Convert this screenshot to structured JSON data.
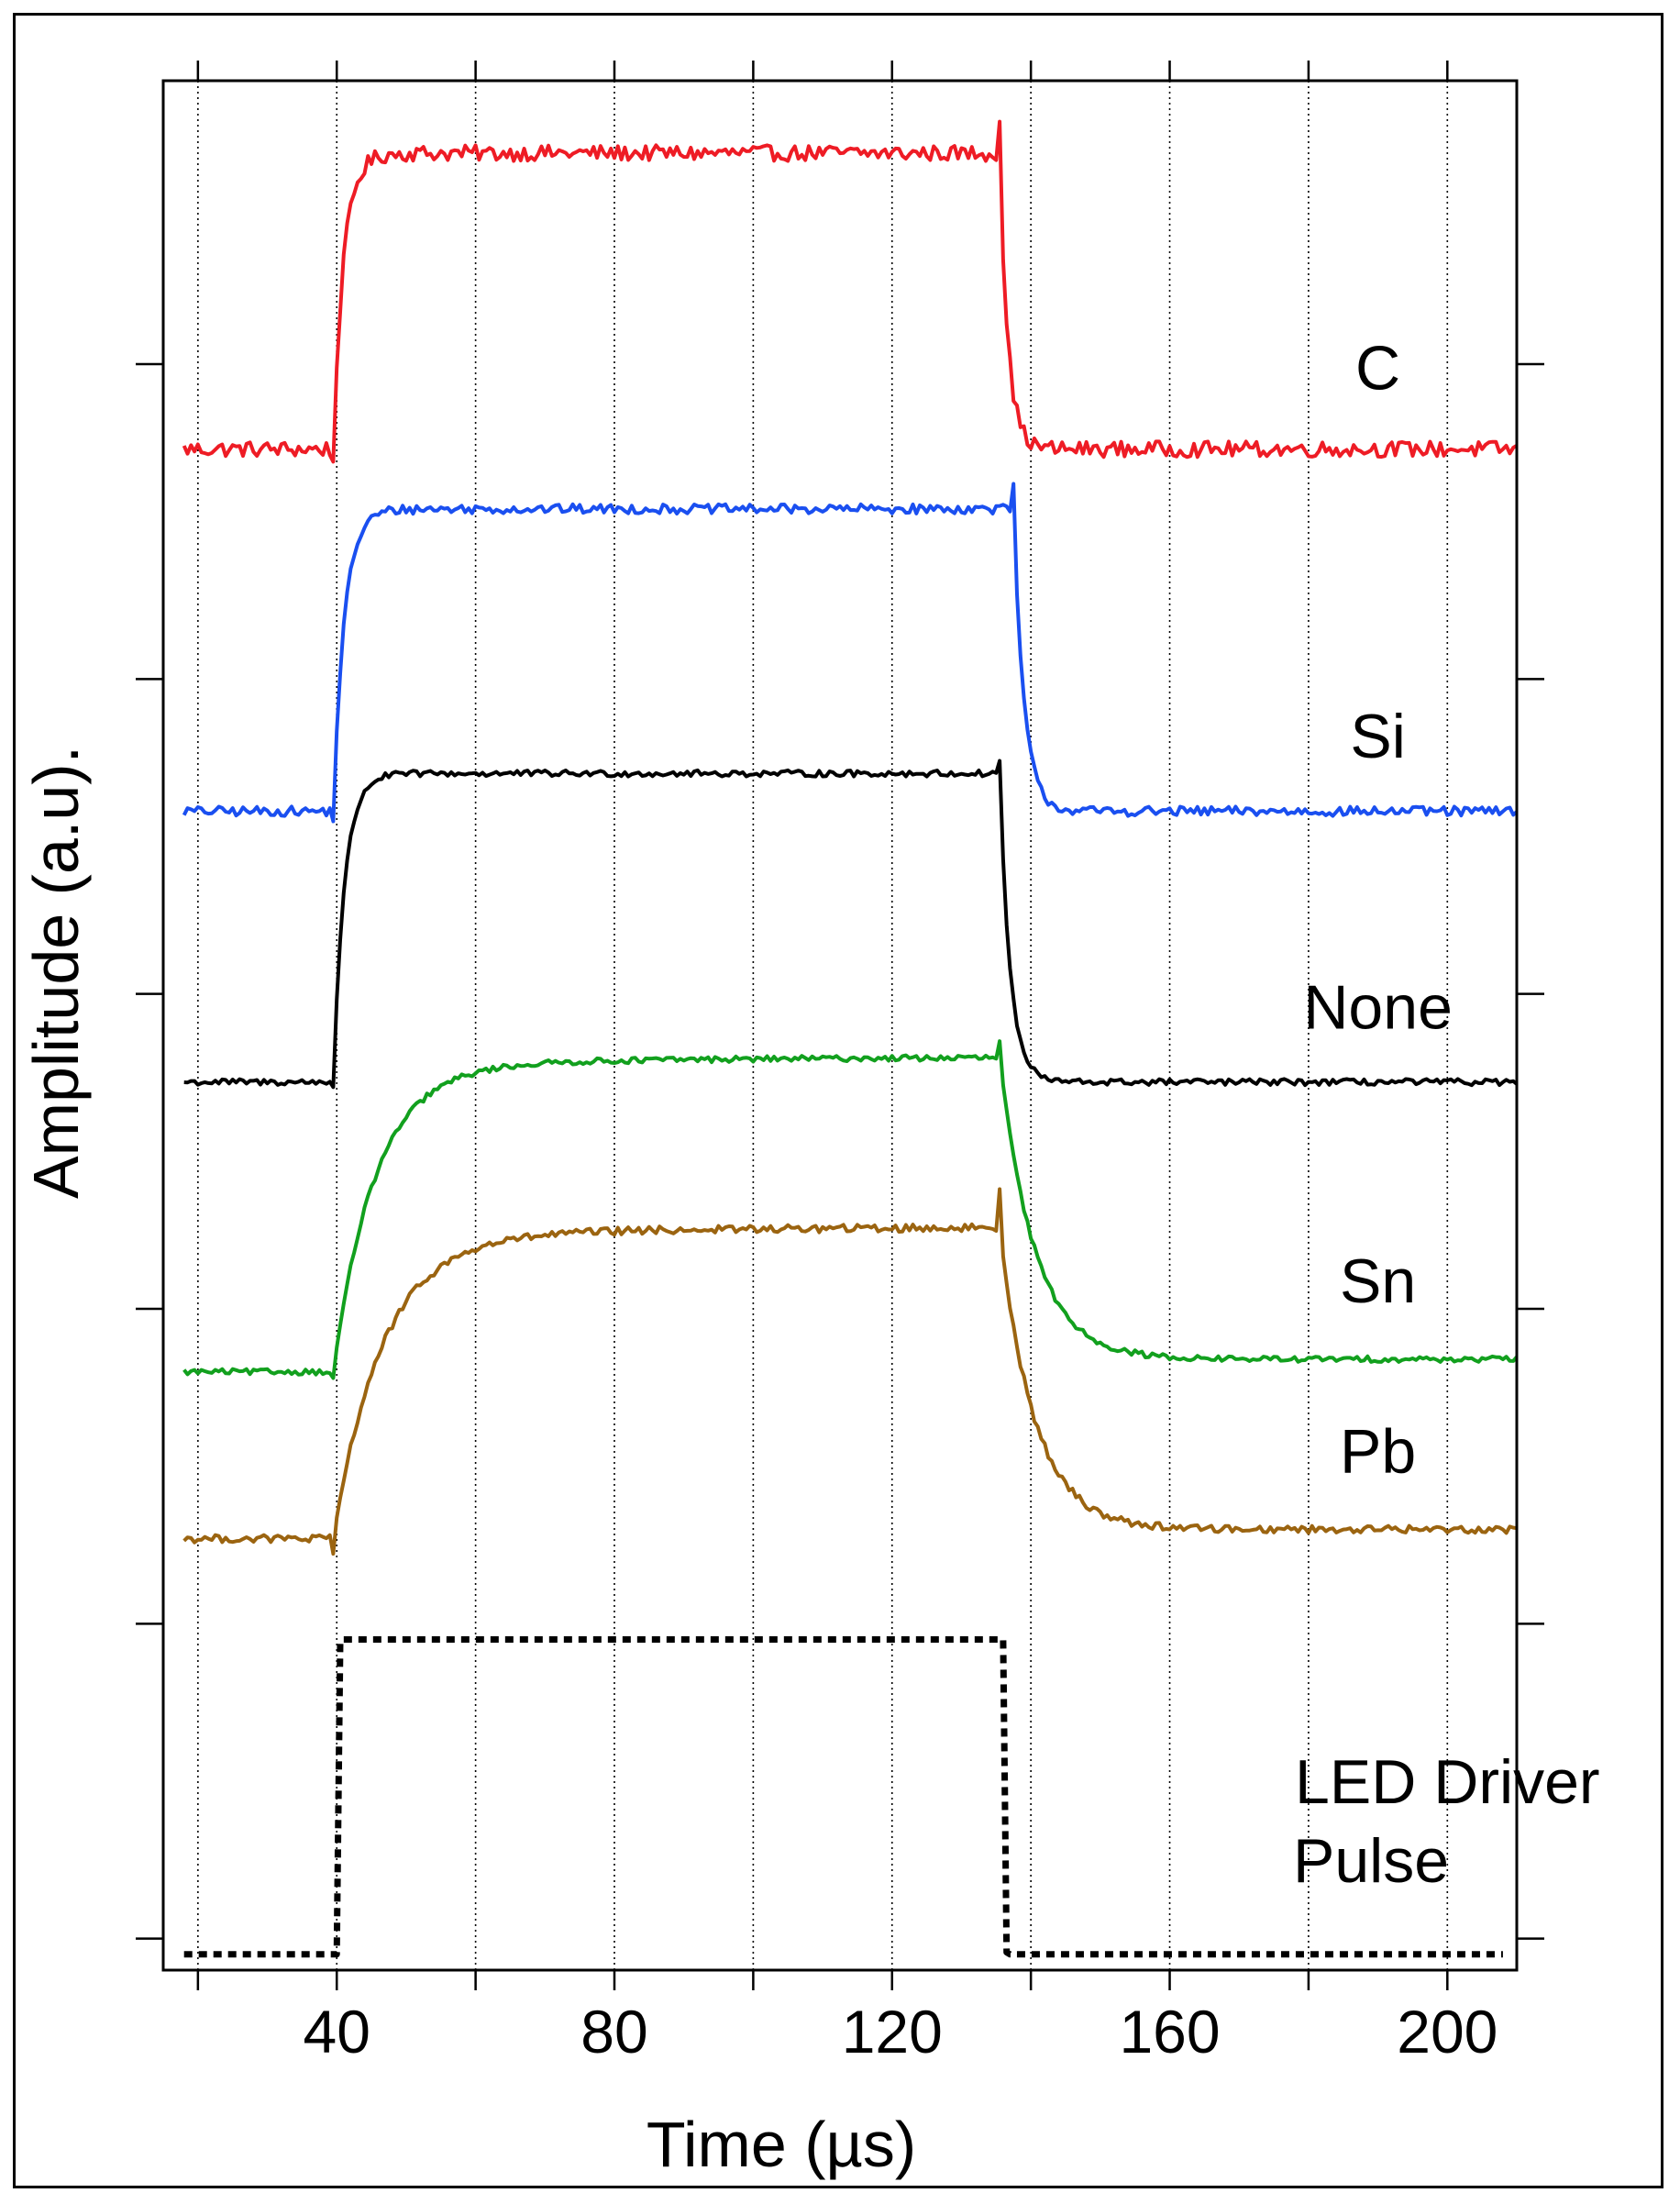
{
  "chart_data": {
    "type": "line",
    "title": "",
    "xlabel": "Time (µs)",
    "ylabel": "Amplitude (a.u).",
    "xlim": [
      15,
      210
    ],
    "ylim": [
      -0.1,
      5.9
    ],
    "x_major_ticks": [
      40,
      80,
      120,
      160,
      200
    ],
    "x_major_tick_labels": [
      "40",
      "80",
      "120",
      "160",
      "200"
    ],
    "x_gridlines": [
      20,
      40,
      60,
      80,
      100,
      120,
      140,
      160,
      180,
      200
    ],
    "y_ticks": [
      0,
      1,
      2,
      3,
      4,
      5
    ],
    "grid": "vertical dotted",
    "legend": "labels placed at right end of each trace",
    "series": [
      {
        "name": "C",
        "color": "#ee1c25",
        "style": "solid",
        "t_on": 39.5,
        "t_off": 135.5,
        "base": 4.73,
        "high": 5.67,
        "tau_rise": 1.5,
        "tau_fall": 1.2,
        "noise": 0.025,
        "spike_off": 0.1,
        "x_start": 18,
        "x_end": 210
      },
      {
        "name": "Si",
        "color": "#1a4ff0",
        "style": "solid",
        "t_on": 39.5,
        "t_off": 137.5,
        "base": 3.58,
        "high": 4.54,
        "tau_rise": 1.6,
        "tau_fall": 1.5,
        "noise": 0.015,
        "spike_off": 0.08,
        "x_start": 18,
        "x_end": 210
      },
      {
        "name": "None",
        "color": "#000000",
        "style": "solid",
        "t_on": 39.5,
        "t_off": 135.5,
        "base": 2.72,
        "high": 3.7,
        "tau_rise": 1.6,
        "tau_fall": 1.5,
        "noise": 0.01,
        "spike_off": 0.04,
        "x_start": 18,
        "x_end": 210
      },
      {
        "name": "Sn",
        "color": "#12a01e",
        "style": "solid",
        "t_on": 39.5,
        "t_off": 135.5,
        "base": 1.8,
        "high": 2.8,
        "tau_rise": 6,
        "tau_fall": 5,
        "drift_high": 0.03,
        "base_after": 1.84,
        "noise": 0.009,
        "spike_off": 0.05,
        "x_start": 18,
        "x_end": 210
      },
      {
        "name": "Pb",
        "color": "#9b6410",
        "style": "solid",
        "t_on": 39.5,
        "t_off": 135.5,
        "base": 1.27,
        "high": 2.26,
        "tau_rise": 7,
        "tau_fall": 5,
        "drift_high": 0.03,
        "base_after": 1.3,
        "noise": 0.012,
        "spike_off": 0.12,
        "x_start": 18,
        "x_end": 210
      },
      {
        "name": "LED Driver Pulse",
        "color": "#000000",
        "style": "dotted",
        "t_on": 40,
        "t_off": 136,
        "base": -0.05,
        "high": 0.95,
        "tau_rise": 0.1,
        "tau_fall": 0.1,
        "noise": 0,
        "spike_off": 0,
        "x_start": 18,
        "x_end": 208
      }
    ],
    "labels": [
      {
        "text": "C",
        "x": 190,
        "y": 4.92
      },
      {
        "text": "Si",
        "x": 190,
        "y": 3.75
      },
      {
        "text": "None",
        "x": 190,
        "y": 2.89
      },
      {
        "text": "Sn",
        "x": 190,
        "y": 2.02
      },
      {
        "text": "Pb",
        "x": 190,
        "y": 1.48
      },
      {
        "text": "LED Driver",
        "x": 200,
        "y": 0.43
      },
      {
        "text": "Pulse",
        "x": 189,
        "y": 0.18
      }
    ]
  }
}
